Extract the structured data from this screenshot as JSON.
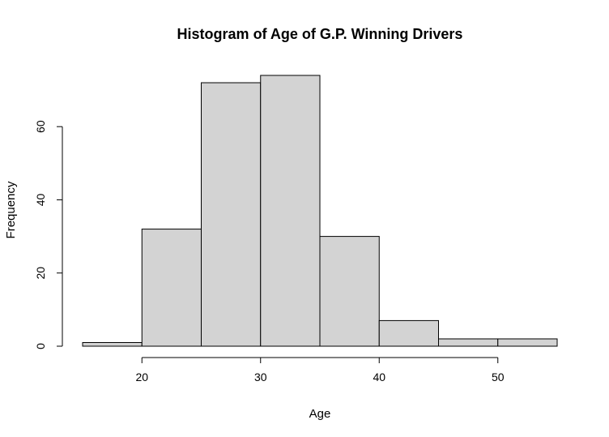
{
  "chart_data": {
    "type": "bar",
    "subtype": "histogram",
    "title": "Histogram of Age of G.P. Winning Drivers",
    "xlabel": "Age",
    "ylabel": "Frequency",
    "bins": [
      {
        "start": 15,
        "end": 20,
        "count": 1
      },
      {
        "start": 20,
        "end": 25,
        "count": 32
      },
      {
        "start": 25,
        "end": 30,
        "count": 72
      },
      {
        "start": 30,
        "end": 35,
        "count": 74
      },
      {
        "start": 35,
        "end": 40,
        "count": 30
      },
      {
        "start": 40,
        "end": 45,
        "count": 7
      },
      {
        "start": 45,
        "end": 50,
        "count": 2
      },
      {
        "start": 50,
        "end": 55,
        "count": 2
      }
    ],
    "x_ticks": [
      20,
      30,
      40,
      50
    ],
    "y_ticks": [
      0,
      20,
      40,
      60
    ],
    "xlim": [
      15,
      55
    ],
    "ylim": [
      0,
      74
    ],
    "bar_color": "#d3d3d3",
    "grid": false,
    "legend": "none"
  }
}
